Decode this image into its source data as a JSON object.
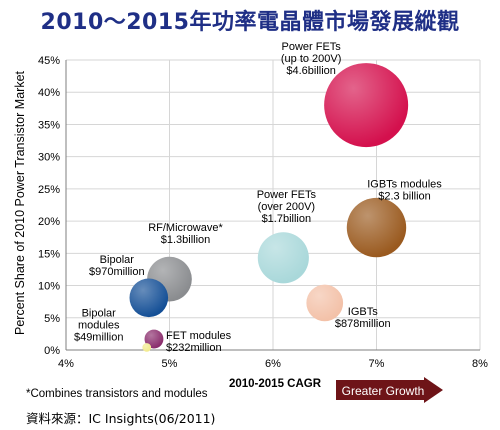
{
  "title": "2010～2015年功率電晶體市場發展縱觀",
  "footnote": "*Combines transistors and modules",
  "source": "資料來源：IC Insights(06/2011)",
  "colors": {
    "title": "#1f2f86",
    "arrow": "#6e1418",
    "grid": "#d6d6d6"
  },
  "chart_data": {
    "type": "scatter",
    "title": "2010～2015年功率電晶體市場發展縱觀",
    "xlabel": "2010-2015 CAGR",
    "ylabel": "Percent Share of 2010 Power Transistor Market",
    "xlim": [
      4,
      8
    ],
    "ylim": [
      0,
      45
    ],
    "x_ticks": [
      "4%",
      "5%",
      "6%",
      "7%",
      "8%"
    ],
    "y_ticks": [
      "0%",
      "5%",
      "10%",
      "15%",
      "20%",
      "25%",
      "30%",
      "35%",
      "40%",
      "45%"
    ],
    "grid": true,
    "arrow_label": "Greater Growth",
    "points": [
      {
        "name": "Power FETs (up to 200V)",
        "label_lines": [
          "Power FETs",
          "(up to 200V)",
          "$4.6billion"
        ],
        "x": 6.9,
        "y": 38,
        "value_billion": 4.6,
        "color": "#d4104d"
      },
      {
        "name": "IGBTs modules",
        "label_lines": [
          "IGBTs modules",
          "$2.3 billion"
        ],
        "x": 7.0,
        "y": 19,
        "value_billion": 2.3,
        "color": "#9a5a1f"
      },
      {
        "name": "Power FETs (over 200V)",
        "label_lines": [
          "Power FETs",
          "(over 200V)",
          "$1.7billion"
        ],
        "x": 6.1,
        "y": 14.3,
        "value_billion": 1.7,
        "color": "#a9d8da"
      },
      {
        "name": "RF/Microwave*",
        "label_lines": [
          "RF/Microwave*",
          "$1.3billion"
        ],
        "x": 5.0,
        "y": 11,
        "value_billion": 1.3,
        "color": "#8a8c8f"
      },
      {
        "name": "IGBTs",
        "label_lines": [
          "IGBTs",
          "$878million"
        ],
        "x": 6.5,
        "y": 7.3,
        "value_billion": 0.878,
        "color": "#f3c1a8"
      },
      {
        "name": "Bipolar",
        "label_lines": [
          "Bipolar",
          "$970million"
        ],
        "x": 4.8,
        "y": 8.1,
        "value_billion": 0.97,
        "color": "#144f96"
      },
      {
        "name": "FET modules",
        "label_lines": [
          "FET modules",
          "$232million"
        ],
        "x": 4.85,
        "y": 1.7,
        "value_billion": 0.232,
        "color": "#8a2c6c"
      },
      {
        "name": "Bipolar modules",
        "label_lines": [
          "Bipolar",
          "modules",
          "$49million"
        ],
        "x": 4.78,
        "y": 0.4,
        "value_billion": 0.049,
        "color": "#f2ea8c"
      }
    ]
  }
}
